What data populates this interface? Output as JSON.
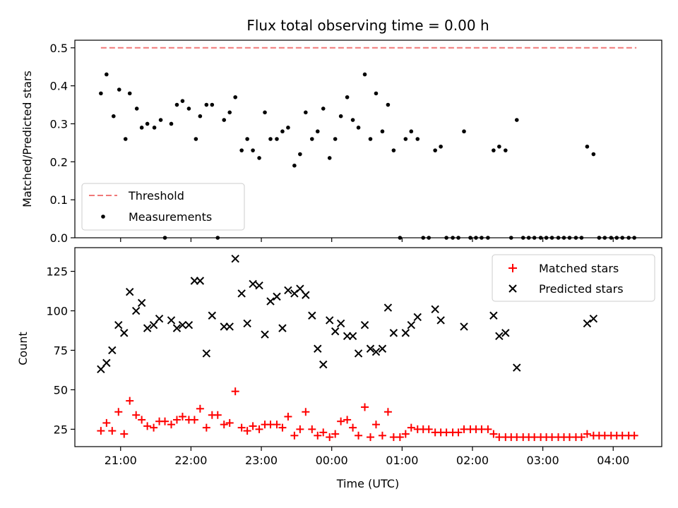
{
  "colors": {
    "threshold": "#f07878",
    "measurement": "#000000",
    "matched": "#ff0000",
    "predicted": "#000000"
  },
  "chart_data": [
    {
      "type": "scatter",
      "title": "Flux total observing time = 0.00 h",
      "xlabel": "",
      "ylabel": "Matched/Predicted stars",
      "ylim": [
        0,
        0.52
      ],
      "yticks": [
        "0.0",
        "0.1",
        "0.2",
        "0.3",
        "0.4",
        "0.5"
      ],
      "grid": false,
      "legend": {
        "placement": "lower-left",
        "entries": [
          "Threshold",
          "Measurements"
        ]
      },
      "threshold": {
        "name": "Threshold",
        "value": 0.5,
        "x_start": 20.72,
        "x_end": 28.33
      },
      "series": [
        {
          "name": "Measurements",
          "x": [
            20.72,
            20.8,
            20.9,
            20.98,
            21.07,
            21.13,
            21.23,
            21.3,
            21.38,
            21.48,
            21.57,
            21.63,
            21.72,
            21.8,
            21.88,
            21.97,
            22.07,
            22.13,
            22.22,
            22.3,
            22.38,
            22.47,
            22.55,
            22.63,
            22.72,
            22.8,
            22.88,
            22.97,
            23.05,
            23.13,
            23.22,
            23.3,
            23.38,
            23.47,
            23.55,
            23.63,
            23.72,
            23.8,
            23.88,
            23.97,
            24.05,
            24.13,
            24.22,
            24.3,
            24.38,
            24.47,
            24.55,
            24.63,
            24.72,
            24.8,
            24.88,
            24.97,
            25.05,
            25.13,
            25.22,
            25.3,
            25.38,
            25.47,
            25.55,
            25.63,
            25.72,
            25.8,
            25.88,
            25.97,
            26.05,
            26.13,
            26.22,
            26.3,
            26.38,
            26.47,
            26.55,
            26.63,
            26.72,
            26.8,
            26.88,
            26.97,
            27.05,
            27.13,
            27.22,
            27.3,
            27.38,
            27.47,
            27.55,
            27.63,
            27.72,
            27.8,
            27.88,
            27.97,
            28.05,
            28.13,
            28.22,
            28.3
          ],
          "y": [
            0.38,
            0.43,
            0.32,
            0.39,
            0.26,
            0.38,
            0.34,
            0.29,
            0.3,
            0.29,
            0.31,
            0.0,
            0.3,
            0.35,
            0.36,
            0.34,
            0.26,
            0.32,
            0.35,
            0.35,
            0.0,
            0.31,
            0.33,
            0.37,
            0.23,
            0.26,
            0.23,
            0.21,
            0.33,
            0.26,
            0.26,
            0.28,
            0.29,
            0.19,
            0.22,
            0.33,
            0.26,
            0.28,
            0.34,
            0.21,
            0.26,
            0.32,
            0.37,
            0.31,
            0.29,
            0.43,
            0.26,
            0.38,
            0.28,
            0.35,
            0.23,
            0.0,
            0.26,
            0.28,
            0.26,
            0.0,
            0.0,
            0.23,
            0.24,
            0.0,
            0.0,
            0.0,
            0.28,
            0.0,
            0.0,
            0.0,
            0.0,
            0.23,
            0.24,
            0.23,
            0.0,
            0.31,
            0.0,
            0.0,
            0.0,
            0.0,
            0.0,
            0.0,
            0.0,
            0.0,
            0.0,
            0.0,
            0.0,
            0.24,
            0.22,
            0.0,
            0.0,
            0.0,
            0.0,
            0.0,
            0.0,
            0.0
          ]
        }
      ]
    },
    {
      "type": "scatter",
      "title": "",
      "xlabel": "Time (UTC)",
      "ylabel": "Count",
      "xlim": [
        20.35,
        28.69
      ],
      "ylim": [
        14,
        140
      ],
      "yticks": [
        "25",
        "50",
        "75",
        "100",
        "125"
      ],
      "xticks": [
        "21:00",
        "22:00",
        "23:00",
        "00:00",
        "01:00",
        "02:00",
        "03:00",
        "04:00"
      ],
      "grid": false,
      "legend": {
        "placement": "top-right",
        "entries": [
          "Matched stars",
          "Predicted stars"
        ]
      },
      "series": [
        {
          "name": "Matched stars",
          "x": [
            20.72,
            20.8,
            20.88,
            20.97,
            21.05,
            21.13,
            21.22,
            21.3,
            21.38,
            21.47,
            21.55,
            21.63,
            21.72,
            21.8,
            21.88,
            21.97,
            22.05,
            22.13,
            22.22,
            22.3,
            22.38,
            22.47,
            22.55,
            22.63,
            22.72,
            22.8,
            22.88,
            22.97,
            23.05,
            23.13,
            23.22,
            23.3,
            23.38,
            23.47,
            23.55,
            23.63,
            23.72,
            23.8,
            23.88,
            23.97,
            24.05,
            24.13,
            24.22,
            24.3,
            24.38,
            24.47,
            24.55,
            24.63,
            24.72,
            24.8,
            24.88,
            24.97,
            25.05,
            25.13,
            25.22,
            25.3,
            25.38,
            25.47,
            25.55,
            25.63,
            25.72,
            25.8,
            25.88,
            25.97,
            26.05,
            26.13,
            26.22,
            26.3,
            26.38,
            26.47,
            26.55,
            26.63,
            26.72,
            26.8,
            26.88,
            26.97,
            27.05,
            27.13,
            27.22,
            27.3,
            27.38,
            27.47,
            27.55,
            27.63,
            27.72,
            27.8,
            27.88,
            27.97,
            28.05,
            28.13,
            28.22,
            28.3
          ],
          "y": [
            24,
            29,
            24,
            36,
            22,
            43,
            34,
            31,
            27,
            26,
            30,
            30,
            28,
            31,
            33,
            31,
            31,
            38,
            26,
            34,
            34,
            28,
            29,
            49,
            26,
            24,
            27,
            25,
            28,
            28,
            28,
            26,
            33,
            21,
            25,
            36,
            25,
            21,
            23,
            20,
            22,
            30,
            31,
            26,
            21,
            39,
            20,
            28,
            21,
            36,
            20,
            20,
            22,
            26,
            25,
            25,
            25,
            23,
            23,
            23,
            23,
            23,
            25,
            25,
            25,
            25,
            25,
            22,
            20,
            20,
            20,
            20,
            20,
            20,
            20,
            20,
            20,
            20,
            20,
            20,
            20,
            20,
            20,
            22,
            21,
            21,
            21,
            21,
            21,
            21,
            21,
            21
          ]
        },
        {
          "name": "Predicted stars",
          "x": [
            20.72,
            20.8,
            20.88,
            20.97,
            21.05,
            21.13,
            21.22,
            21.3,
            21.38,
            21.47,
            21.55,
            21.72,
            21.8,
            21.88,
            21.97,
            22.05,
            22.13,
            22.22,
            22.3,
            22.47,
            22.55,
            22.63,
            22.72,
            22.8,
            22.88,
            22.97,
            23.05,
            23.13,
            23.22,
            23.3,
            23.38,
            23.47,
            23.55,
            23.63,
            23.72,
            23.8,
            23.88,
            23.97,
            24.05,
            24.13,
            24.22,
            24.3,
            24.38,
            24.47,
            24.55,
            24.63,
            24.72,
            24.8,
            24.88,
            25.05,
            25.13,
            25.22,
            25.47,
            25.55,
            25.88,
            26.3,
            26.38,
            26.47,
            26.63,
            27.63,
            27.72
          ],
          "y": [
            63,
            67,
            75,
            91,
            86,
            112,
            100,
            105,
            89,
            91,
            95,
            94,
            89,
            91,
            91,
            119,
            119,
            73,
            97,
            90,
            90,
            133,
            111,
            92,
            117,
            116,
            85,
            106,
            109,
            89,
            113,
            111,
            114,
            110,
            97,
            76,
            66,
            94,
            87,
            92,
            84,
            84,
            73,
            91,
            76,
            74,
            76,
            102,
            86,
            86,
            91,
            96,
            101,
            94,
            90,
            97,
            84,
            86,
            64,
            92,
            95
          ]
        }
      ]
    }
  ]
}
